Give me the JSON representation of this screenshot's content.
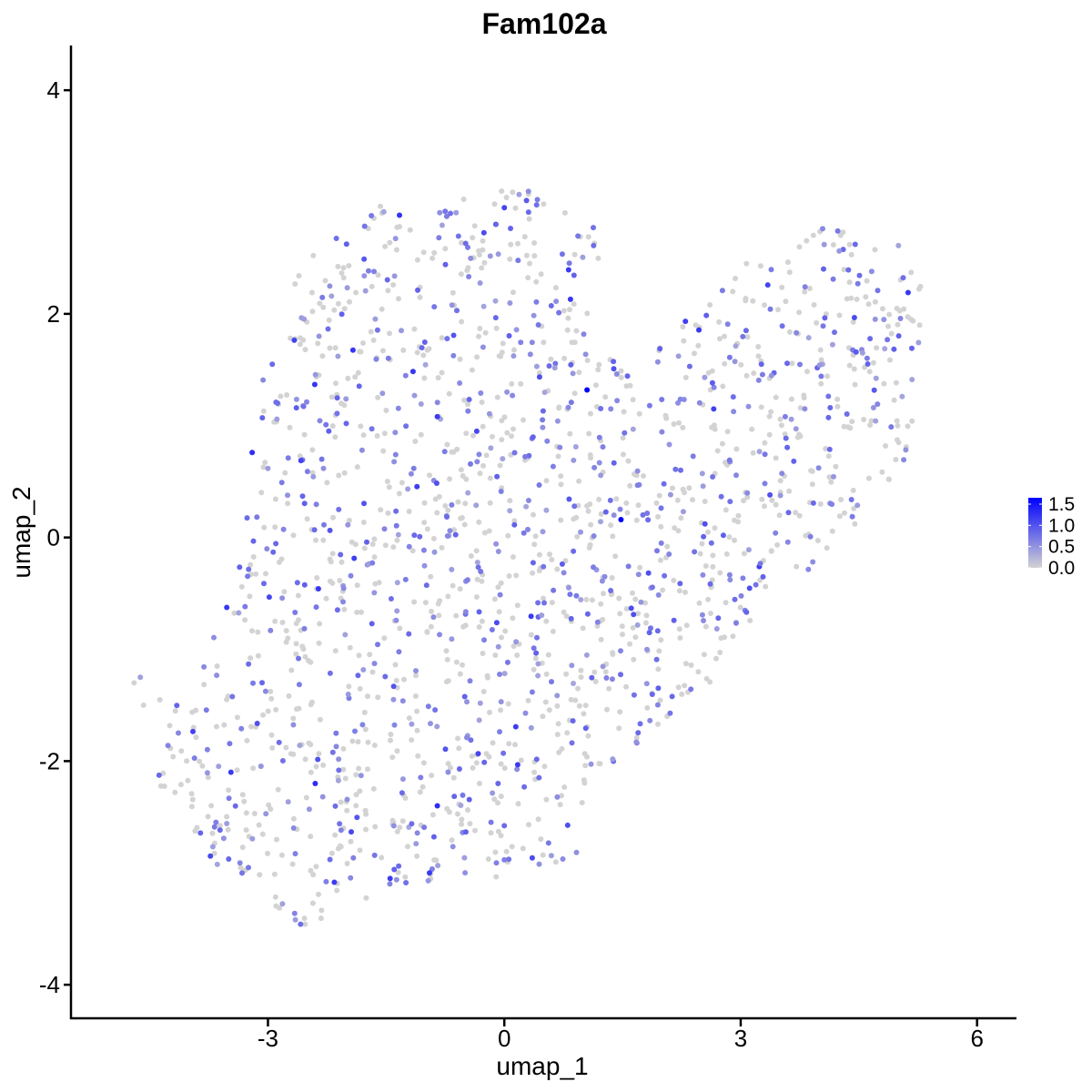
{
  "chart_data": {
    "type": "scatter",
    "title": "Fam102a",
    "xlabel": "umap_1",
    "ylabel": "umap_2",
    "xlim": [
      -5.5,
      6.5
    ],
    "ylim": [
      -4.3,
      4.4
    ],
    "x_ticks": [
      -3,
      0,
      3,
      6
    ],
    "y_ticks": [
      -4,
      -2,
      0,
      2,
      4
    ],
    "x_tick_labels": [
      "-3",
      "0",
      "3",
      "6"
    ],
    "y_tick_labels": [
      "-4",
      "-2",
      "0",
      "2",
      "4"
    ],
    "grid": false,
    "color_scale": {
      "low_color": "#d3d3d3",
      "high_color": "#0000ff",
      "min": 0.0,
      "max": 1.65,
      "breaks": [
        1.5,
        1.0,
        0.5,
        0.0
      ],
      "labels": [
        "1.5",
        "1.0",
        "0.5",
        "0.0"
      ]
    },
    "legend_position": "right",
    "point_count": 1800,
    "highlighted_points": [
      {
        "x": 1.05,
        "y": 1.32,
        "value": 1.65
      },
      {
        "x": 1.48,
        "y": 0.16,
        "value": 1.65
      },
      {
        "x": -3.2,
        "y": 0.76,
        "value": 1.3
      },
      {
        "x": -0.85,
        "y": 1.08,
        "value": 1.2
      },
      {
        "x": -2.4,
        "y": -2.2,
        "value": 1.3
      },
      {
        "x": -0.85,
        "y": -2.4,
        "value": 1.3
      },
      {
        "x": -1.45,
        "y": -3.05,
        "value": 1.2
      },
      {
        "x": -0.95,
        "y": -3.0,
        "value": 1.2
      },
      {
        "x": 0.0,
        "y": 2.95,
        "value": 1.1
      },
      {
        "x": -0.35,
        "y": 0.95,
        "value": 1.1
      }
    ]
  }
}
